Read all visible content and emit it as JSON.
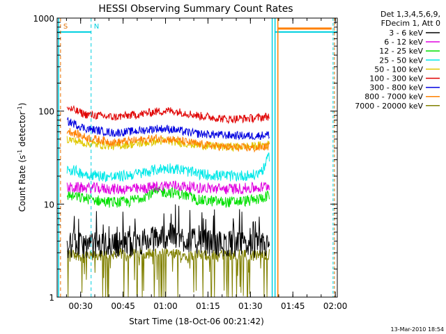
{
  "chart_data": {
    "type": "line",
    "title": "HESSI Observing Summary Count Rates",
    "xlabel": "Start Time (18-Oct-06 00:21:42)",
    "ylabel_main": "Count Rate (s",
    "ylabel_sup1": "-1",
    "ylabel_mid": " detector",
    "ylabel_sup2": "-1",
    "ylabel_end": ")",
    "y_scale": "log",
    "ylim": [
      1,
      1000
    ],
    "xlim_minutes": [
      0,
      99
    ],
    "x_ticks": [
      {
        "label": "00:30",
        "t": 8.3
      },
      {
        "label": "00:45",
        "t": 23.3
      },
      {
        "label": "01:00",
        "t": 38.3
      },
      {
        "label": "01:15",
        "t": 53.3
      },
      {
        "label": "01:30",
        "t": 68.3
      },
      {
        "label": "01:45",
        "t": 83.3
      },
      {
        "label": "02:00",
        "t": 98.3
      }
    ],
    "y_ticks": [
      {
        "label": "1",
        "v": 1
      },
      {
        "label": "10",
        "v": 10
      },
      {
        "label": "100",
        "v": 100
      },
      {
        "label": "1000",
        "v": 1000
      }
    ],
    "legend_header": [
      "Det 1,3,4,5,6,9,",
      "FDecim 1, Att 0"
    ],
    "series": [
      {
        "name": "3 - 6 keV",
        "color": "#000000",
        "start": 3.5,
        "end": 75,
        "x": [
          3.5,
          10,
          20,
          30,
          35,
          40,
          45,
          50,
          60,
          75
        ],
        "y": [
          3.6,
          3.6,
          3.7,
          3.9,
          4.3,
          4.6,
          4.2,
          3.9,
          3.7,
          3.6
        ]
      },
      {
        "name": "6 - 12 keV",
        "color": "#e000e0",
        "start": 3.5,
        "end": 75,
        "x": [
          3.5,
          10,
          20,
          30,
          35,
          40,
          45,
          50,
          60,
          72,
          75
        ],
        "y": [
          15,
          15,
          14.5,
          14.5,
          15.5,
          16,
          15.5,
          15,
          14.5,
          15,
          16
        ]
      },
      {
        "name": "12 - 25 keV",
        "color": "#00e000",
        "start": 3.5,
        "end": 75,
        "x": [
          3.5,
          10,
          18,
          25,
          30,
          35,
          40,
          45,
          50,
          60,
          70,
          75
        ],
        "y": [
          12.5,
          11.5,
          10.5,
          10.5,
          12,
          13.5,
          13.5,
          12.5,
          11,
          10.5,
          11,
          12.5
        ]
      },
      {
        "name": "25 - 50 keV",
        "color": "#00e8e8",
        "start": 3.5,
        "end": 75,
        "x": [
          3.5,
          10,
          20,
          30,
          35,
          40,
          45,
          50,
          60,
          70,
          73,
          75
        ],
        "y": [
          24,
          21,
          19.5,
          21.5,
          23.5,
          24.5,
          23,
          21,
          20,
          20.5,
          24,
          33
        ]
      },
      {
        "name": "50 - 100 keV",
        "color": "#e0c800",
        "start": 3.5,
        "end": 75,
        "x": [
          3.5,
          10,
          20,
          30,
          35,
          40,
          45,
          50,
          60,
          70,
          75
        ],
        "y": [
          50,
          45,
          42,
          45,
          47.5,
          47.5,
          45,
          43,
          41,
          42,
          44
        ]
      },
      {
        "name": "100 - 300 keV",
        "color": "#e00000",
        "start": 3.5,
        "end": 75,
        "x": [
          3.5,
          10,
          20,
          30,
          35,
          40,
          45,
          50,
          60,
          70,
          75
        ],
        "y": [
          108,
          92,
          86,
          93,
          99,
          101,
          96,
          89,
          82,
          84,
          88
        ]
      },
      {
        "name": "300 - 800 keV",
        "color": "#0000e0",
        "start": 3.5,
        "end": 75,
        "x": [
          3.5,
          10,
          20,
          30,
          35,
          40,
          45,
          50,
          60,
          70,
          75
        ],
        "y": [
          78,
          65,
          58,
          62,
          65,
          64,
          60,
          57,
          55,
          54,
          56
        ]
      },
      {
        "name": "800 - 7000 keV",
        "color": "#ff8000",
        "start": 3.5,
        "end": 75,
        "x": [
          3.5,
          10,
          20,
          30,
          35,
          40,
          45,
          50,
          60,
          70,
          75
        ],
        "y": [
          62,
          52,
          46,
          49,
          51,
          50,
          47,
          44,
          41,
          40,
          42
        ]
      },
      {
        "name": "7000 - 20000 keV",
        "color": "#808000",
        "start": 3.5,
        "end": 75,
        "x": [
          3.5,
          10,
          20,
          30,
          40,
          50,
          60,
          70,
          75
        ],
        "y": [
          3.0,
          2.7,
          2.9,
          3.0,
          2.9,
          2.8,
          2.9,
          2.8,
          2.9
        ]
      }
    ],
    "markers": [
      {
        "label": "S",
        "t": 1.2,
        "color": "#e07000"
      },
      {
        "label": "N",
        "t": 12,
        "color": "#00d0e0"
      }
    ],
    "legend_placement": "right",
    "grid": false
  },
  "timestamp": "13-Mar-2010 18:54"
}
